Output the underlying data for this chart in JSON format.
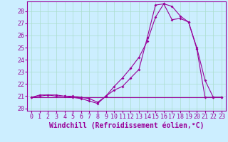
{
  "xlabel": "Windchill (Refroidissement éolien,°C)",
  "background_color": "#cceeff",
  "line_color": "#990099",
  "xlim": [
    -0.5,
    23.5
  ],
  "ylim": [
    19.8,
    28.8
  ],
  "yticks": [
    20,
    21,
    22,
    23,
    24,
    25,
    26,
    27,
    28
  ],
  "xticks": [
    0,
    1,
    2,
    3,
    4,
    5,
    6,
    7,
    8,
    9,
    10,
    11,
    12,
    13,
    14,
    15,
    16,
    17,
    18,
    19,
    20,
    21,
    22,
    23
  ],
  "line1_x": [
    0,
    1,
    2,
    3,
    4,
    5,
    6,
    7,
    8,
    9,
    10,
    11,
    12,
    13,
    14,
    15,
    16,
    17,
    18,
    19,
    20,
    21,
    22,
    23
  ],
  "line1_y": [
    20.9,
    21.1,
    21.1,
    21.0,
    21.0,
    20.9,
    20.8,
    20.6,
    20.4,
    21.0,
    21.5,
    21.8,
    22.5,
    23.2,
    25.8,
    28.5,
    28.6,
    27.3,
    27.4,
    27.1,
    24.9,
    20.9,
    20.9,
    20.9
  ],
  "line2_x": [
    0,
    1,
    2,
    3,
    4,
    5,
    6,
    7,
    8,
    9,
    10,
    11,
    12,
    13,
    14,
    15,
    16,
    17,
    18,
    19,
    20,
    21,
    22,
    23
  ],
  "line2_y": [
    20.9,
    21.0,
    21.1,
    21.1,
    21.0,
    21.0,
    20.9,
    20.8,
    20.5,
    21.0,
    21.8,
    22.5,
    23.3,
    24.2,
    25.5,
    27.5,
    28.6,
    28.4,
    27.6,
    27.1,
    25.0,
    22.3,
    20.9,
    20.9
  ],
  "line3_x": [
    0,
    23
  ],
  "line3_y": [
    20.9,
    20.9
  ],
  "grid_color": "#aaddcc",
  "tick_fontsize": 6,
  "label_fontsize": 7
}
